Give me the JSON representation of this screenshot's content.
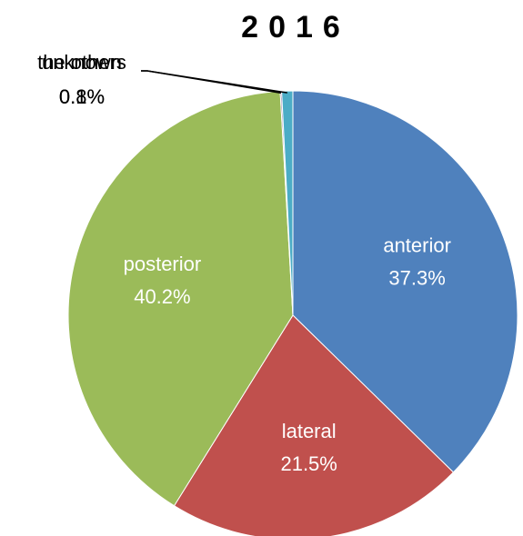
{
  "chart_data": {
    "type": "pie",
    "title": "2016",
    "categories": [
      "anterior",
      "lateral",
      "posterior",
      "the others",
      "unknown"
    ],
    "values": [
      37.3,
      21.5,
      40.2,
      0.1,
      0.8
    ],
    "value_labels": [
      "37.3%",
      "21.5%",
      "40.2%",
      "0.1%",
      "0.8%"
    ],
    "colors": [
      "#4f81bd",
      "#c0504d",
      "#9bbb59",
      "#7b5f9c",
      "#4bacc6"
    ]
  }
}
